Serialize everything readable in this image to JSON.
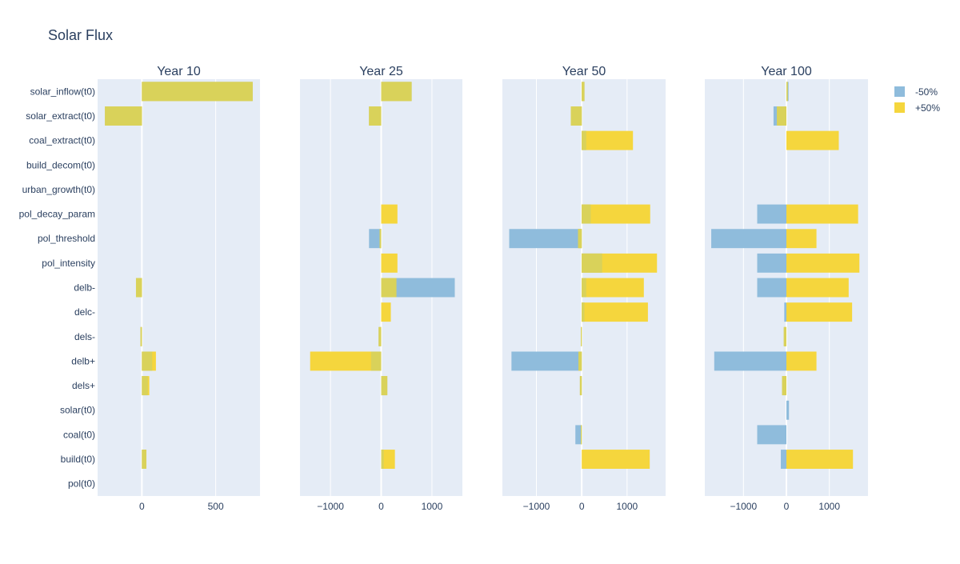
{
  "title": "Solar Flux",
  "colors": {
    "minus": "#8fbcdc",
    "plus": "#f5d63d",
    "overlap": "#d9d25a",
    "panel_bg": "#e5ecf6",
    "grid": "#ffffff",
    "text": "#2a3f5f"
  },
  "legend": {
    "placement": "top-right",
    "items": [
      {
        "label": "-50%",
        "color": "#8fbcdc"
      },
      {
        "label": "+50%",
        "color": "#f5d63d"
      }
    ]
  },
  "chart_data": {
    "type": "bar",
    "orientation": "horizontal",
    "categories": [
      "solar_inflow(t0)",
      "solar_extract(t0)",
      "coal_extract(t0)",
      "build_decom(t0)",
      "urban_growth(t0)",
      "pol_decay_param",
      "pol_threshold",
      "pol_intensity",
      "delb-",
      "delc-",
      "dels-",
      "delb+",
      "dels+",
      "solar(t0)",
      "coal(t0)",
      "build(t0)",
      "pol(t0)"
    ],
    "series_names": [
      "-50%",
      "+50%"
    ],
    "panels": [
      {
        "title": "Year 10",
        "xlim": [
          -300,
          800
        ],
        "xticks": [
          0,
          500
        ],
        "tick_labels": [
          "0",
          "500"
        ],
        "minus": [
          750,
          -250,
          0,
          0,
          0,
          0,
          0,
          0,
          -40,
          0,
          -10,
          70,
          40,
          0,
          0,
          30,
          0
        ],
        "plus": [
          750,
          -250,
          0,
          0,
          0,
          0,
          0,
          0,
          -40,
          0,
          -10,
          95,
          50,
          0,
          0,
          30,
          0
        ]
      },
      {
        "title": "Year 25",
        "xlim": [
          -1600,
          1600
        ],
        "xticks": [
          -1000,
          0,
          1000
        ],
        "tick_labels": [
          "−1000",
          "0",
          "1000"
        ],
        "minus": [
          600,
          -240,
          0,
          0,
          0,
          0,
          -240,
          0,
          1450,
          0,
          -50,
          -200,
          120,
          0,
          0,
          50,
          0
        ],
        "plus": [
          600,
          -240,
          0,
          0,
          0,
          320,
          -30,
          320,
          300,
          190,
          -50,
          -1400,
          120,
          0,
          0,
          270,
          0
        ]
      },
      {
        "title": "Year 50",
        "xlim": [
          -1750,
          1850
        ],
        "xticks": [
          -1000,
          0,
          1000
        ],
        "tick_labels": [
          "−1000",
          "0",
          "1000"
        ],
        "minus": [
          60,
          -240,
          100,
          0,
          0,
          200,
          -1600,
          450,
          100,
          60,
          -20,
          -1550,
          -40,
          0,
          -140,
          0,
          0
        ],
        "plus": [
          60,
          -240,
          1130,
          0,
          0,
          1510,
          -80,
          1660,
          1370,
          1460,
          -20,
          -70,
          -40,
          0,
          -20,
          1500,
          0
        ]
      },
      {
        "title": "Year 100",
        "xlim": [
          -1900,
          1900
        ],
        "xticks": [
          -1000,
          0,
          1000
        ],
        "tick_labels": [
          "−1000",
          "0",
          "1000"
        ],
        "minus": [
          50,
          -300,
          0,
          0,
          0,
          -680,
          -1750,
          -680,
          -680,
          -50,
          -60,
          -1680,
          -100,
          60,
          -680,
          -130,
          0
        ],
        "plus": [
          30,
          -220,
          1220,
          0,
          0,
          1670,
          700,
          1700,
          1450,
          1530,
          -60,
          700,
          -100,
          0,
          0,
          1550,
          0
        ]
      }
    ]
  }
}
